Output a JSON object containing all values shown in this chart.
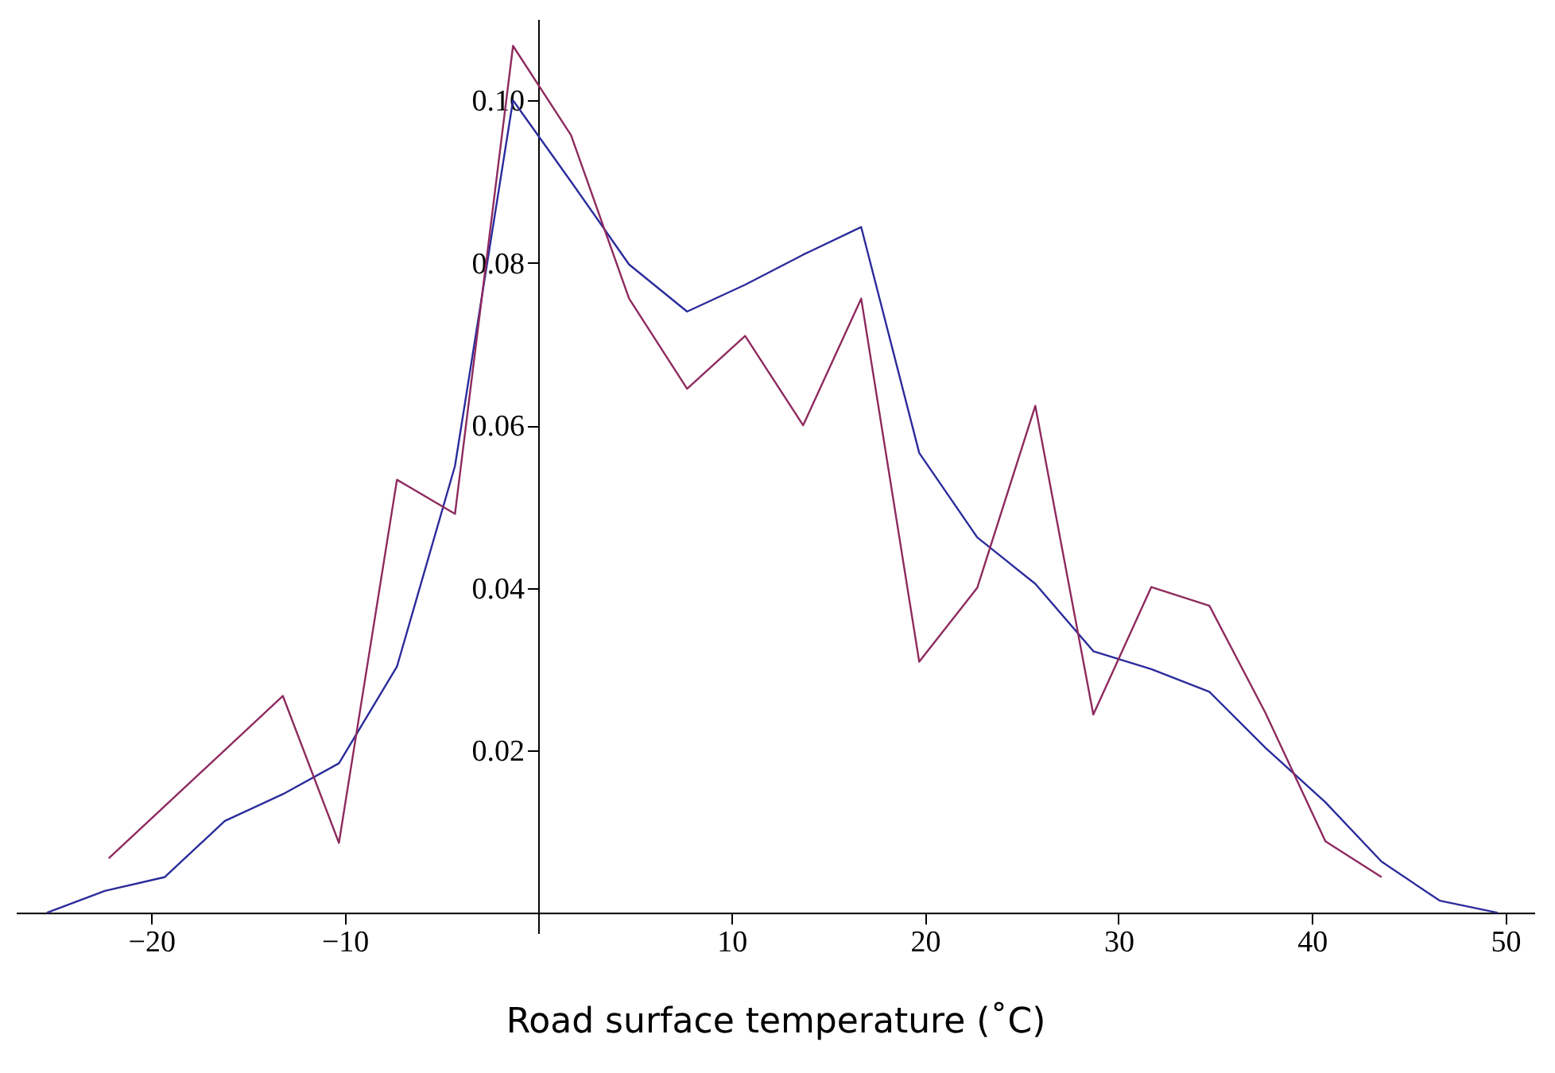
{
  "chart_data": {
    "type": "line",
    "xlabel": "Road surface temperature (˚C)",
    "xlim": [
      -27,
      51.5
    ],
    "ylim": [
      -0.0025,
      0.11
    ],
    "xticks": [
      {
        "value": -20,
        "label": "−20"
      },
      {
        "value": -10,
        "label": "−10"
      },
      10,
      20,
      30,
      40,
      50
    ],
    "yticks": [
      0.02,
      0.04,
      0.06,
      0.08,
      {
        "value": 0.1,
        "label": "0.10"
      }
    ],
    "grid": false,
    "marker": "none",
    "line_style": "solid",
    "series": [
      {
        "color": "#2b2b9c",
        "x": [
          -25.4,
          -22.4,
          -19.3,
          -16.2,
          -13.2,
          -10.3,
          -7.3,
          -4.3,
          -1.3,
          1.7,
          4.7,
          7.7,
          10.7,
          13.7,
          16.7,
          19.7,
          22.7,
          25.7,
          28.7,
          31.7,
          34.7,
          37.6,
          40.7,
          43.6,
          46.6,
          49.6
        ],
        "values": [
          0,
          0.0027,
          0.0044,
          0.0113,
          0.0146,
          0.0184,
          0.0303,
          0.055,
          0.1,
          0.09,
          0.0798,
          0.074,
          0.0773,
          0.081,
          0.0844,
          0.0566,
          0.0462,
          0.0405,
          0.0322,
          0.03,
          0.0272,
          0.0203,
          0.0136,
          0.0063,
          0.0015,
          0
        ]
      },
      {
        "color": "#8e2a5e",
        "x": [
          -22.2,
          -13.2,
          -10.3,
          -7.3,
          -4.3,
          -1.3,
          1.7,
          4.7,
          7.7,
          10.7,
          13.7,
          16.7,
          19.7,
          22.7,
          25.7,
          28.7,
          31.7,
          34.7,
          37.6,
          40.7,
          43.6
        ],
        "values": [
          0.0067,
          0.0267,
          0.0086,
          0.0533,
          0.0491,
          0.1067,
          0.0957,
          0.0756,
          0.0645,
          0.071,
          0.06,
          0.0756,
          0.0309,
          0.04,
          0.0624,
          0.0244,
          0.0401,
          0.0378,
          0.0246,
          0.0088,
          0.0044
        ]
      }
    ]
  }
}
